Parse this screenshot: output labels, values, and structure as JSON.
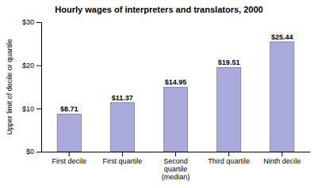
{
  "chart_data": {
    "type": "bar",
    "title": "Hourly wages of interpreters and translators, 2000",
    "categories": [
      "First decile",
      "First quartile",
      "Second\nquartile\n(median)",
      "Third quartile",
      "Ninth decile"
    ],
    "values": [
      8.71,
      11.37,
      14.95,
      19.51,
      25.44
    ],
    "value_labels": [
      "$8.71",
      "$11.37",
      "$14.95",
      "$19.51",
      "$25.44"
    ],
    "data_labels": true,
    "color": "#aaaadd",
    "ylabel": "Upper limit of decile or quartile",
    "ylim": [
      0,
      30
    ],
    "yticks": [
      {
        "value": 0,
        "label": "$0"
      },
      {
        "value": 10,
        "label": "$10"
      },
      {
        "value": 20,
        "label": "$20"
      },
      {
        "value": 30,
        "label": "$30"
      }
    ],
    "grid": false
  }
}
